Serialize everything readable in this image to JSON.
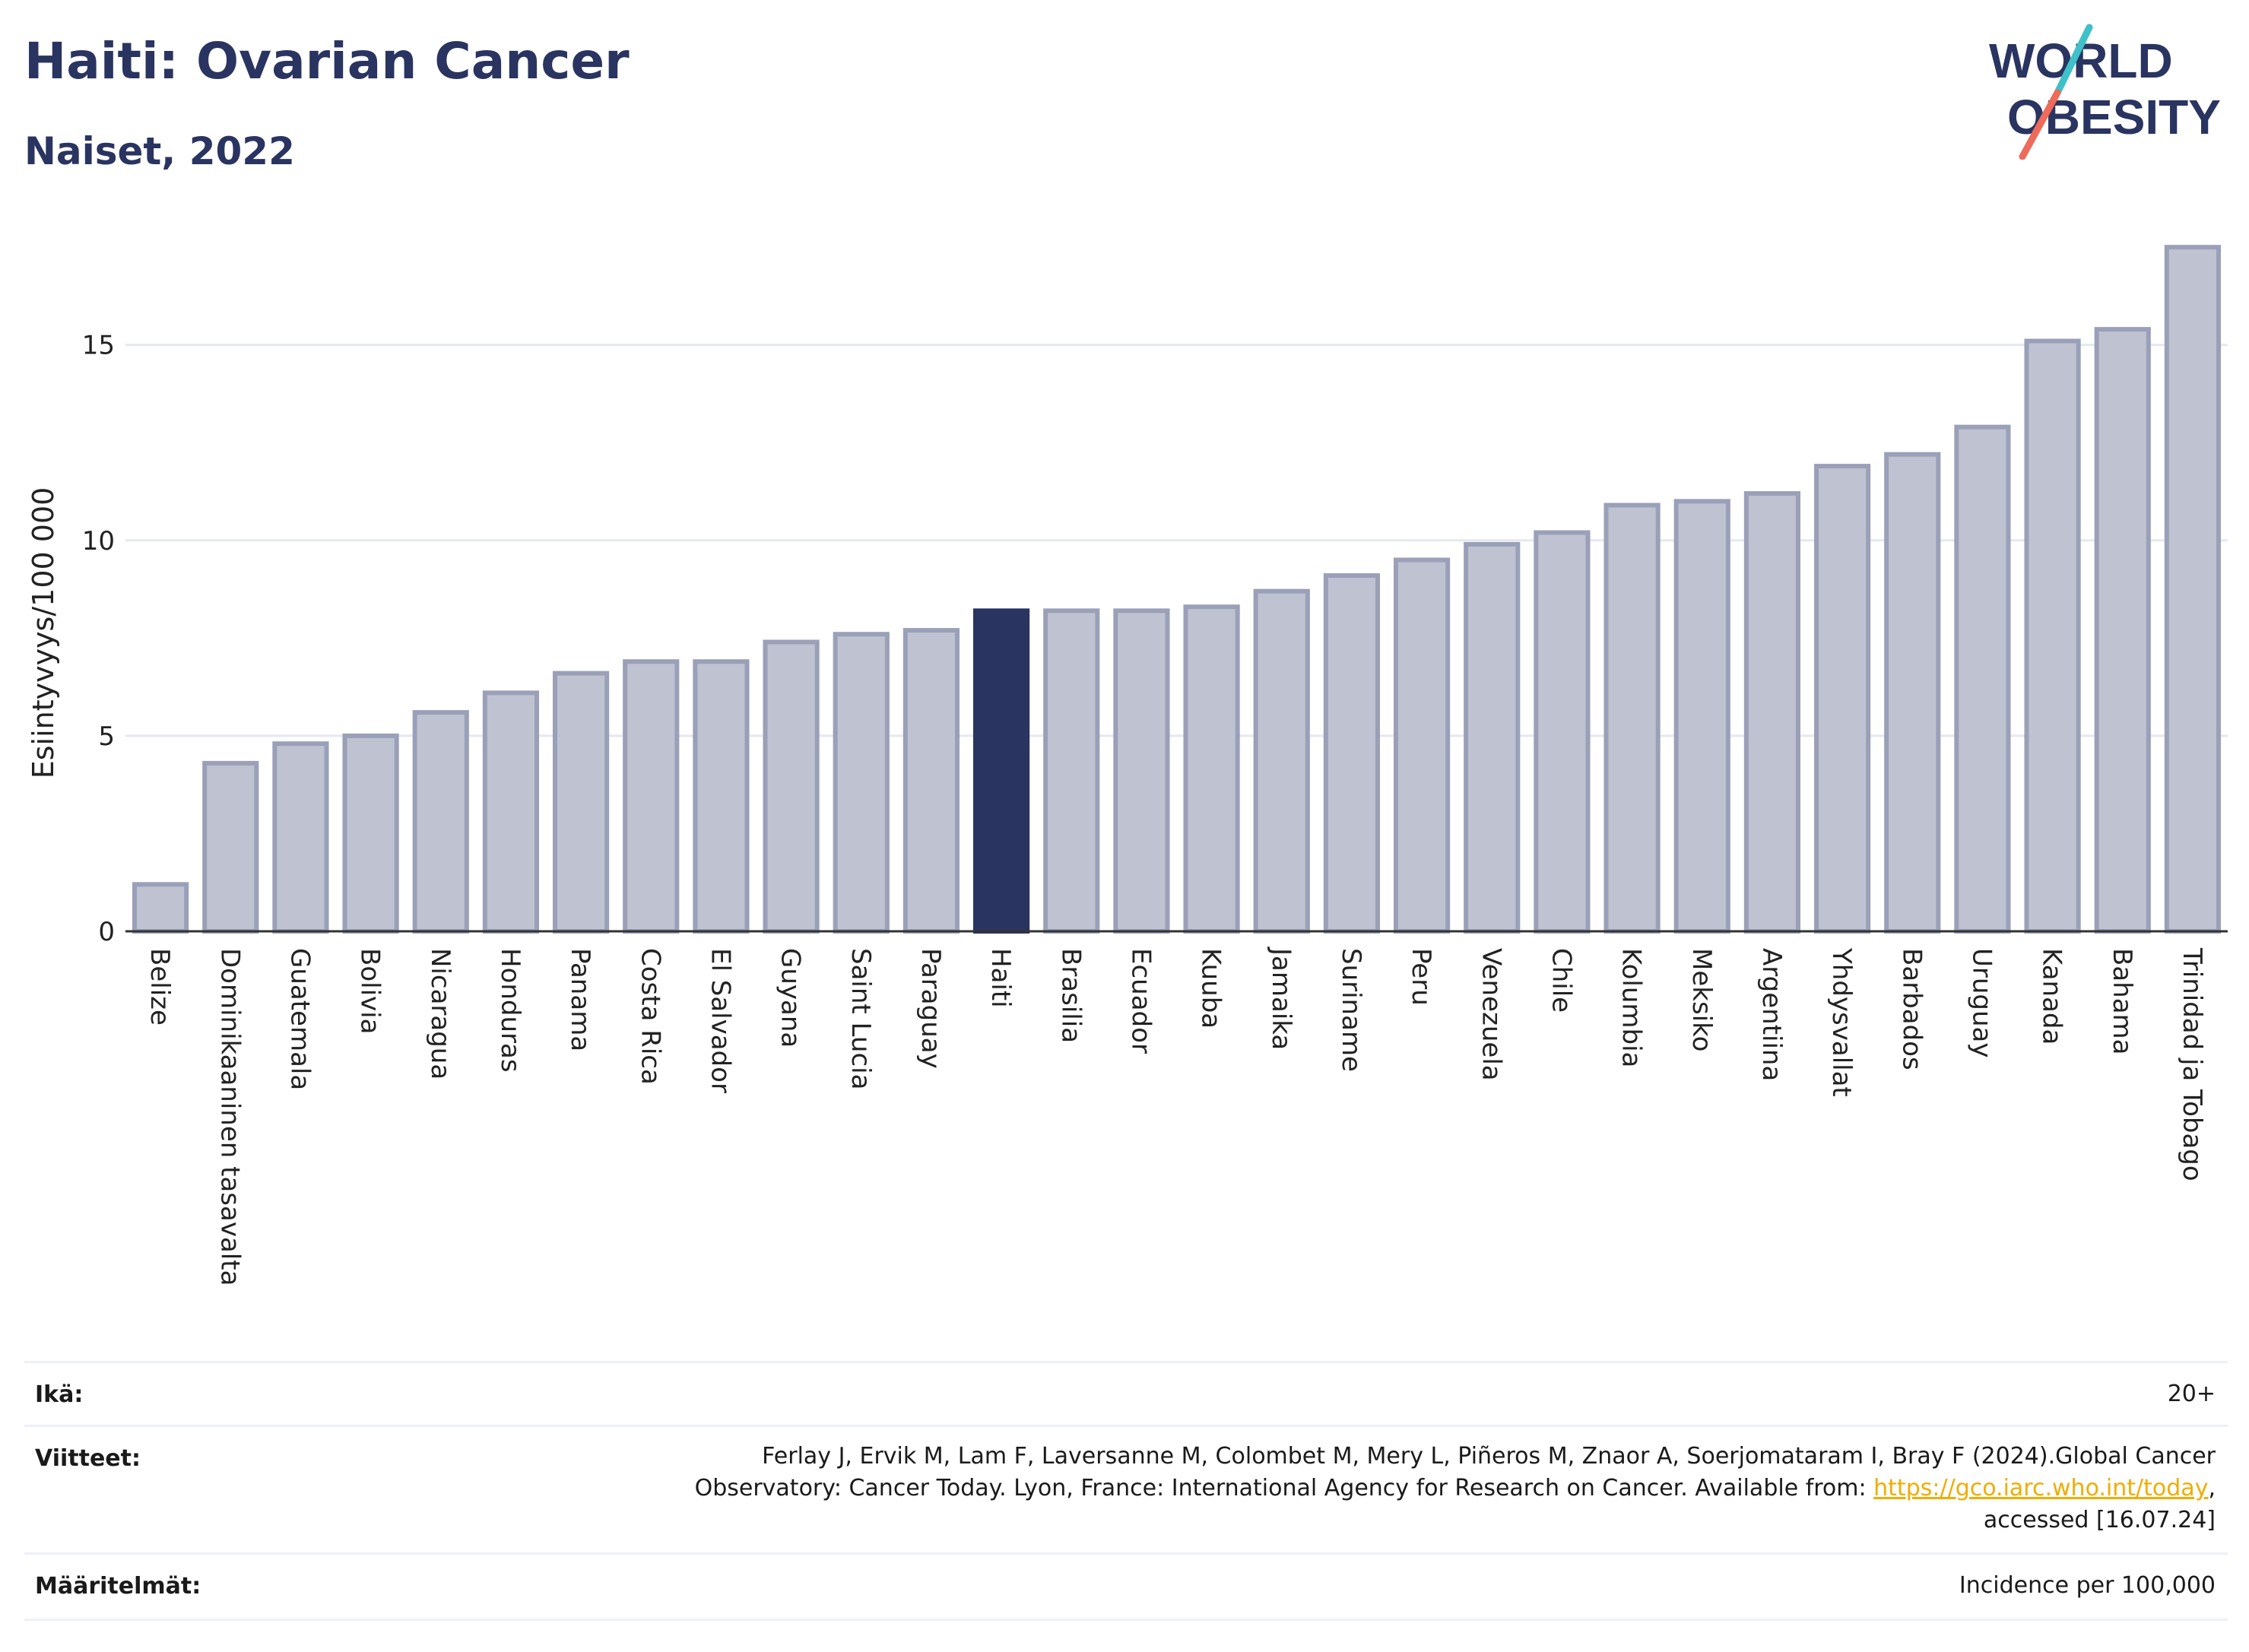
{
  "header": {
    "title": "Haiti: Ovarian Cancer",
    "subtitle": "Naiset, 2022"
  },
  "logo": {
    "line1": "WORLD",
    "line2": "OBESITY",
    "accent_colors": [
      "#3fc1c9",
      "#ee6a59"
    ]
  },
  "colors": {
    "highlight": "#2a3461",
    "bar": "#bfc3d1",
    "bar_border": "#9aa0b8",
    "text": "#2a3461",
    "grid": "#e6e8f0"
  },
  "chart_data": {
    "type": "bar",
    "ylabel": "Esiintyvyys/100 000",
    "ylim": [
      0,
      17.6
    ],
    "yticks": [
      0,
      5,
      10,
      15
    ],
    "highlight": "Haiti",
    "categories": [
      "Belize",
      "Dominikaaninen tasavalta",
      "Guatemala",
      "Bolivia",
      "Nicaragua",
      "Honduras",
      "Panama",
      "Costa Rica",
      "El Salvador",
      "Guyana",
      "Saint Lucia",
      "Paraguay",
      "Haiti",
      "Brasilia",
      "Ecuador",
      "Kuuba",
      "Jamaika",
      "Suriname",
      "Peru",
      "Venezuela",
      "Chile",
      "Kolumbia",
      "Meksiko",
      "Argentiina",
      "Yhdysvallat",
      "Barbados",
      "Uruguay",
      "Kanada",
      "Bahama",
      "Trinidad ja Tobago"
    ],
    "values": [
      1.2,
      4.3,
      4.8,
      5.0,
      5.6,
      6.1,
      6.6,
      6.9,
      6.9,
      7.4,
      7.6,
      7.7,
      8.2,
      8.2,
      8.2,
      8.3,
      8.7,
      9.1,
      9.5,
      9.9,
      10.2,
      10.9,
      11.0,
      11.2,
      11.9,
      12.2,
      12.9,
      15.1,
      15.4,
      17.5
    ]
  },
  "meta": {
    "age_label": "Ikä:",
    "age_value": "20+",
    "refs_label": "Viitteet:",
    "refs_line1": "Ferlay J, Ervik M, Lam F, Laversanne M, Colombet M, Mery L, Piñeros M, Znaor A, Soerjomataram I, Bray F (2024).Global Cancer",
    "refs_line2_pre": "Observatory: Cancer Today. Lyon, France: International Agency for Research on Cancer. Available from: ",
    "refs_link": "https://gco.iarc.who.int/today",
    "refs_line2_post": ",",
    "refs_line3": "accessed [16.07.24]",
    "defs_label": "Määritelmät:",
    "defs_value": "Incidence per 100,000"
  }
}
